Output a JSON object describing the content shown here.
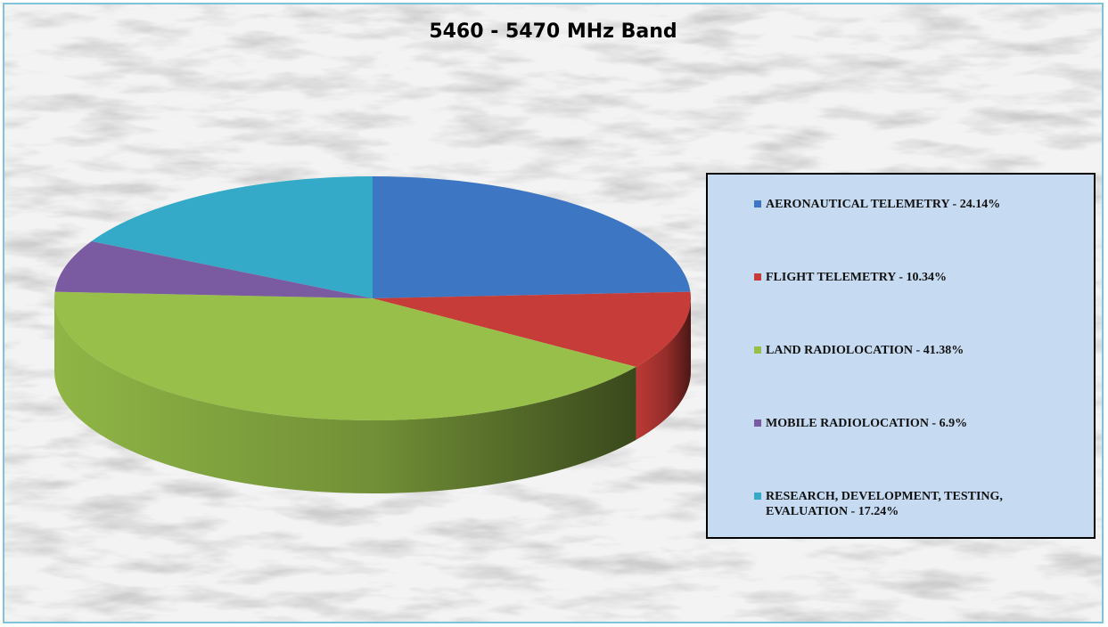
{
  "chart_data": {
    "type": "pie",
    "title": "5460 - 5470 MHz Band",
    "legend_position": "right",
    "slices": [
      {
        "label": "AERONAUTICAL TELEMETRY",
        "value": 24.14,
        "legend_text": "AERONAUTICAL TELEMETRY - 24.14%",
        "color": "#3d76c2"
      },
      {
        "label": "FLIGHT TELEMETRY",
        "value": 10.34,
        "legend_text": "FLIGHT TELEMETRY - 10.34%",
        "color": "#c63c38"
      },
      {
        "label": "LAND RADIOLOCATION",
        "value": 41.38,
        "legend_text": "LAND RADIOLOCATION - 41.38%",
        "color": "#97bf49"
      },
      {
        "label": "MOBILE RADIOLOCATION",
        "value": 6.9,
        "legend_text": "MOBILE RADIOLOCATION - 6.9%",
        "color": "#7a5aa0"
      },
      {
        "label": "RESEARCH, DEVELOPMENT, TESTING, EVALUATION",
        "value": 17.24,
        "legend_text": "RESEARCH, DEVELOPMENT, TESTING, EVALUATION - 17.24%",
        "color": "#34aac8"
      }
    ]
  }
}
